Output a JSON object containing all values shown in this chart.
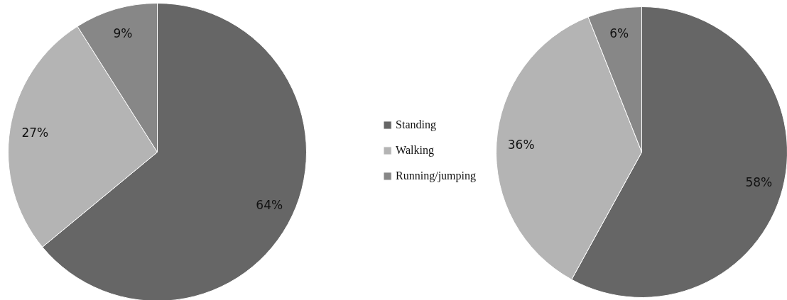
{
  "chart_data": [
    {
      "type": "pie",
      "categories": [
        "Standing",
        "Walking",
        "Running/jumping"
      ],
      "values": [
        64,
        27,
        9
      ],
      "colors": [
        "#666666",
        "#b4b4b4",
        "#878787"
      ],
      "value_labels": [
        "64%",
        "27%",
        "9%"
      ],
      "legend": "right"
    },
    {
      "type": "pie",
      "categories": [
        null,
        null,
        null
      ],
      "values": [
        58,
        36,
        6
      ],
      "colors": [
        "#666666",
        "#b4b4b4",
        "#878787"
      ],
      "value_labels": [
        "58%",
        "36%",
        "6%"
      ]
    }
  ]
}
